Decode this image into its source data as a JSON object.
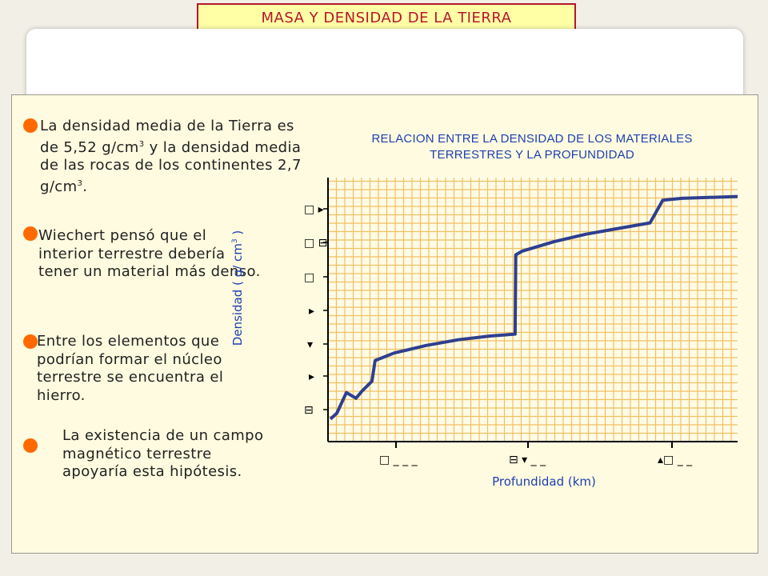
{
  "header": {
    "title": "MASA Y DENSIDAD DE LA TIERRA"
  },
  "bullets": [
    {
      "pre": "La densidad media de la Tierra es de 5,52 g/cm",
      "sup1": "3",
      "mid": " y la densidad media de las rocas de los continentes 2,7 g/cm",
      "sup2": "3",
      "post": "."
    },
    {
      "text": "Wiechert pensó que el interior terrestre debería tener un material más denso."
    },
    {
      "text": "Entre los elementos que podrían formar el núcleo terrestre se encuentra el hierro."
    },
    {
      "text": "La existencia de un campo magnético terrestre apoyaría esta hipótesis."
    }
  ],
  "colors": {
    "accent": "#b5172b",
    "bullet": "#ff6a00",
    "chart_text": "#1f3fb0",
    "grid": "#f0c060",
    "curve": "#2d3f8f"
  },
  "chart_data": {
    "type": "line",
    "title": "RELACION ENTRE LA DENSIDAD DE LOS MATERIALES TERRESTRES Y LA PROFUNDIDAD",
    "xlabel": "Profundidad (km)",
    "ylabel_pre": "Densidad ( g/ cm",
    "ylabel_sup": "3",
    "ylabel_post": " )",
    "xlim": [
      0,
      6371
    ],
    "ylim": [
      0,
      14
    ],
    "tick_glyphs_note": "tick labels rendered as unreadable symbols",
    "x": [
      0,
      100,
      250,
      400,
      500,
      650,
      700,
      1000,
      1500,
      2000,
      2500,
      2890,
      2900,
      3000,
      3500,
      4000,
      4500,
      5000,
      5150,
      5200,
      5500,
      6371
    ],
    "y": [
      1.2,
      1.5,
      2.6,
      2.3,
      2.7,
      3.2,
      4.3,
      4.7,
      5.1,
      5.4,
      5.6,
      5.7,
      9.9,
      10.1,
      10.6,
      11.0,
      11.3,
      11.6,
      12.5,
      12.8,
      12.9,
      13.0
    ]
  }
}
